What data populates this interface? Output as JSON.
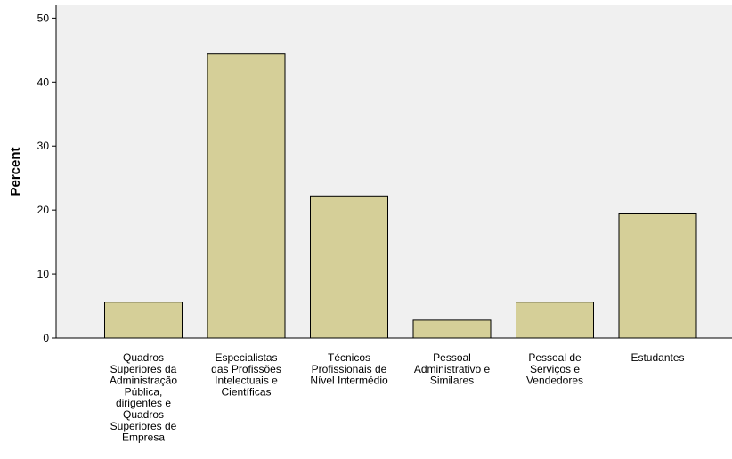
{
  "colors": {
    "plot_background": "#f0f0f0",
    "bar_fill": "#d5cf98",
    "bar_stroke": "#000000"
  },
  "chart_data": {
    "type": "bar",
    "title": "",
    "xlabel": "",
    "ylabel": "Percent",
    "ylim": [
      0,
      52
    ],
    "yticks": [
      "0",
      "10",
      "20",
      "30",
      "40",
      "50"
    ],
    "grid": false,
    "categories": [
      "Quadros Superiores da Administração Pública, dirigentes e Quadros Superiores de Empresa",
      "Especialistas das Profissões Intelectuais e Científicas",
      "Técnicos Profissionais de Nível Intermédio",
      "Pessoal Administrativo e Similares",
      "Pessoal de Serviços e Vendedores",
      "Estudantes"
    ],
    "category_lines": [
      [
        "Quadros",
        "Superiores da",
        "Administração",
        "Pública,",
        "dirigentes e",
        "Quadros",
        "Superiores de",
        "Empresa"
      ],
      [
        "Especialistas",
        "das Profissões",
        "Intelectuais e",
        "Científicas"
      ],
      [
        "Técnicos",
        "Profissionais de",
        "Nível Intermédio"
      ],
      [
        "Pessoal",
        "Administrativo e",
        "Similares"
      ],
      [
        "Pessoal de",
        "Serviços e",
        "Vendedores"
      ],
      [
        "Estudantes"
      ]
    ],
    "values": [
      5.6,
      44.4,
      22.2,
      2.8,
      5.6,
      19.4
    ]
  }
}
